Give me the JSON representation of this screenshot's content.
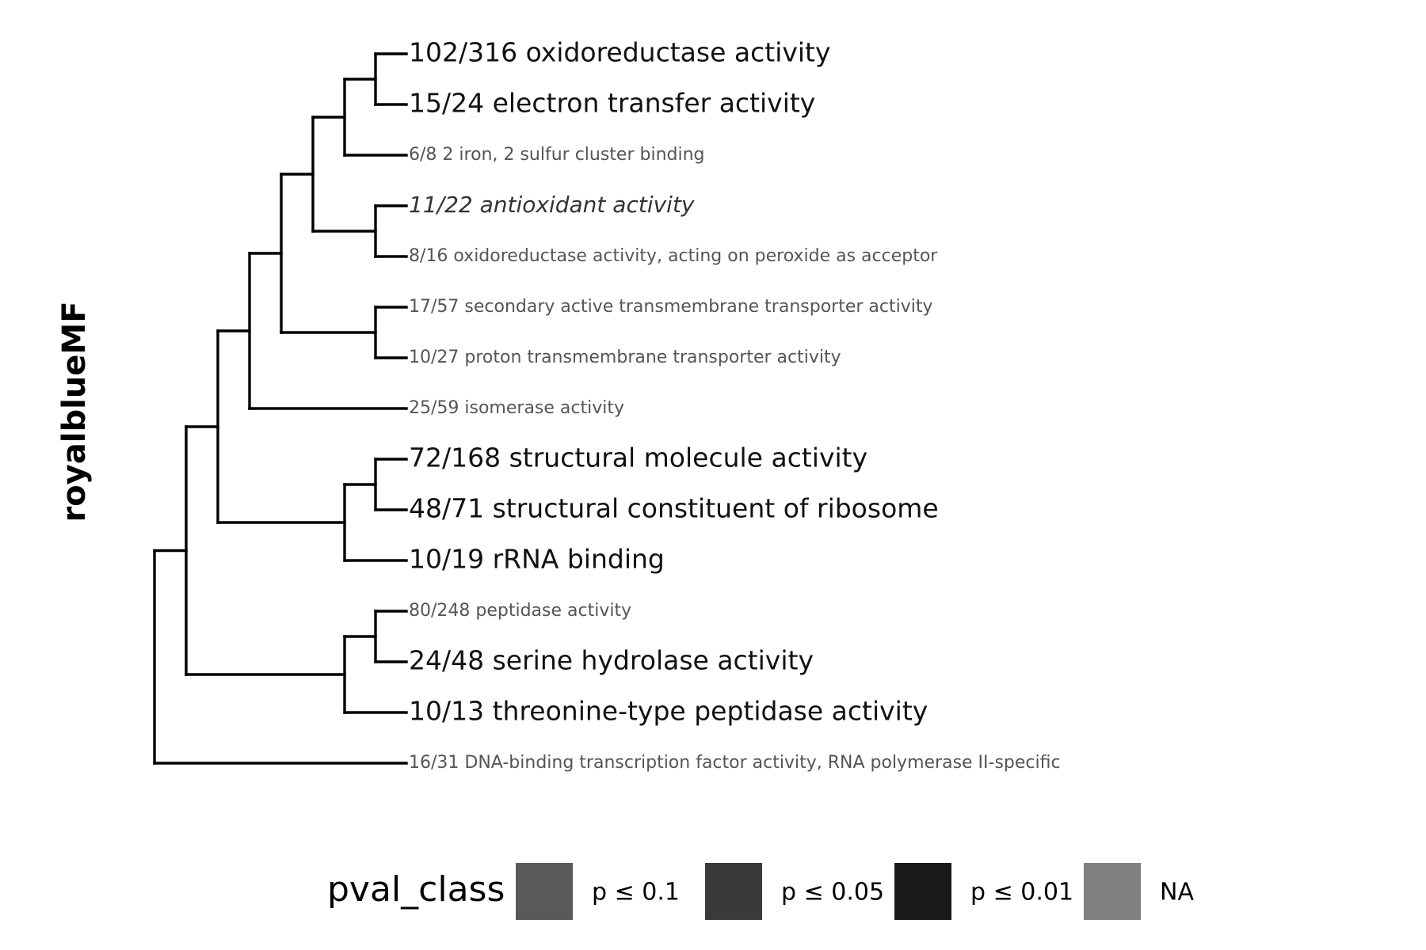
{
  "y_label": "royalblueMF",
  "terms": [
    {
      "id": "t1",
      "label": "102/316 oxidoreductase activity",
      "pval_class": "p ≤ 0.01",
      "size": "large",
      "italic": false,
      "color": "#111111"
    },
    {
      "id": "t2",
      "label": "15/24 electron transfer activity",
      "pval_class": "p ≤ 0.01",
      "size": "large",
      "italic": false,
      "color": "#111111"
    },
    {
      "id": "t3",
      "label": "6/8 2 iron, 2 sulfur cluster binding",
      "pval_class": "NA",
      "size": "small",
      "italic": false,
      "color": "#555555"
    },
    {
      "id": "t4",
      "label": "11/22 antioxidant activity",
      "pval_class": "p ≤ 0.05",
      "size": "medium",
      "italic": true,
      "color": "#333333"
    },
    {
      "id": "t5",
      "label": "8/16 oxidoreductase activity, acting on peroxide as acceptor",
      "pval_class": "NA",
      "size": "small",
      "italic": false,
      "color": "#555555"
    },
    {
      "id": "t6",
      "label": "17/57 secondary active transmembrane transporter activity",
      "pval_class": "NA",
      "size": "small",
      "italic": false,
      "color": "#555555"
    },
    {
      "id": "t7",
      "label": "10/27 proton transmembrane transporter activity",
      "pval_class": "NA",
      "size": "small",
      "italic": false,
      "color": "#555555"
    },
    {
      "id": "t8",
      "label": "25/59 isomerase activity",
      "pval_class": "NA",
      "size": "small",
      "italic": false,
      "color": "#555555"
    },
    {
      "id": "t9",
      "label": "72/168 structural molecule activity",
      "pval_class": "p ≤ 0.01",
      "size": "large",
      "italic": false,
      "color": "#111111"
    },
    {
      "id": "t10",
      "label": "48/71 structural constituent of ribosome",
      "pval_class": "p ≤ 0.01",
      "size": "large",
      "italic": false,
      "color": "#111111"
    },
    {
      "id": "t11",
      "label": "10/19 rRNA binding",
      "pval_class": "p ≤ 0.01",
      "size": "large",
      "italic": false,
      "color": "#111111"
    },
    {
      "id": "t12",
      "label": "80/248 peptidase activity",
      "pval_class": "NA",
      "size": "small",
      "italic": false,
      "color": "#555555"
    },
    {
      "id": "t13",
      "label": "24/48 serine hydrolase activity",
      "pval_class": "p ≤ 0.01",
      "size": "large",
      "italic": false,
      "color": "#111111"
    },
    {
      "id": "t14",
      "label": "10/13 threonine-type peptidase activity",
      "pval_class": "p ≤ 0.01",
      "size": "large",
      "italic": false,
      "color": "#111111"
    },
    {
      "id": "t15",
      "label": "16/31 DNA-binding transcription factor activity, RNA polymerase II-specific",
      "pval_class": "NA",
      "size": "small",
      "italic": false,
      "color": "#555555"
    }
  ],
  "tree": {
    "children": [
      {
        "children": [
          {
            "children": [
              {
                "children": [
                  {
                    "children": [
                      {
                        "children": [
                          {
                            "children": [
                              {
                                "leaf": "t1"
                              },
                              {
                                "leaf": "t2"
                              }
                            ]
                          },
                          {
                            "leaf": "t3"
                          }
                        ]
                      },
                      {
                        "children": [
                          {
                            "leaf": "t4"
                          },
                          {
                            "leaf": "t5"
                          }
                        ]
                      }
                    ]
                  },
                  {
                    "children": [
                      {
                        "leaf": "t6"
                      },
                      {
                        "leaf": "t7"
                      }
                    ]
                  }
                ]
              },
              {
                "leaf": "t8"
              }
            ]
          },
          {
            "children": [
              {
                "children": [
                  {
                    "leaf": "t9"
                  },
                  {
                    "leaf": "t10"
                  }
                ]
              },
              {
                "leaf": "t11"
              }
            ]
          }
        ]
      },
      {
        "children": [
          {
            "children": [
              {
                "leaf": "t12"
              },
              {
                "leaf": "t13"
              }
            ]
          },
          {
            "leaf": "t14"
          }
        ]
      }
    ],
    "outgroup": "t15"
  },
  "legend": {
    "title": "pval_class",
    "items": [
      {
        "label": "p ≤ 0.1",
        "color": "#595959"
      },
      {
        "label": "p ≤ 0.05",
        "color": "#3a3a3a"
      },
      {
        "label": "p ≤ 0.01",
        "color": "#1a1a1a"
      },
      {
        "label": "NA",
        "color": "#808080"
      }
    ]
  }
}
